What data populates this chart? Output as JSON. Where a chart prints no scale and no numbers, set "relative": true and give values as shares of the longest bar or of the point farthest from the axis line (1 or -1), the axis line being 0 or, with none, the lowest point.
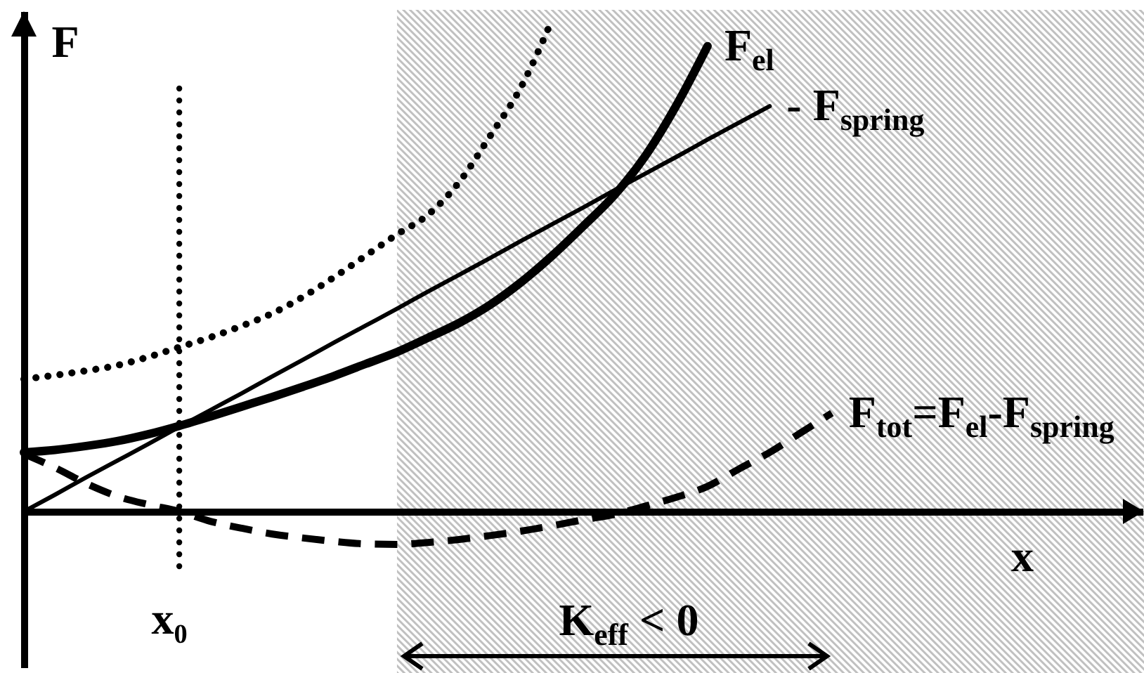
{
  "chart_data": {
    "type": "line",
    "relative": true,
    "xlabel": "x",
    "ylabel": "F",
    "categories": [
      null,
      null,
      null,
      null,
      null,
      null,
      null,
      null,
      null,
      null,
      null,
      null,
      null,
      null,
      null,
      null,
      null,
      null,
      null,
      null,
      null,
      null,
      null,
      null,
      null,
      null,
      null,
      null,
      null,
      null,
      null,
      null,
      null,
      null,
      null,
      null,
      null
    ],
    "series": [
      {
        "name": "F$_{el}$",
        "color": "#000000",
        "line_style": "solid",
        "values": [
          0.12,
          0.125,
          0.133,
          0.143,
          0.157,
          0.174,
          0.193,
          0.213,
          0.233,
          0.254,
          0.276,
          0.3,
          0.324,
          0.353,
          0.383,
          0.42,
          0.466,
          0.52,
          0.58,
          0.643,
          0.723,
          0.826,
          0.946,
          null,
          null,
          null,
          null,
          null,
          null,
          null,
          null,
          null,
          null,
          null,
          null,
          null,
          null
        ]
      },
      {
        "name": "- F$_{spring}$",
        "color": "#000000",
        "line_style": "solid",
        "values": [
          0,
          0.034,
          0.069,
          0.103,
          0.137,
          0.172,
          0.206,
          0.24,
          0.275,
          0.309,
          0.344,
          0.378,
          0.412,
          0.447,
          0.481,
          0.515,
          0.55,
          0.584,
          0.618,
          0.653,
          0.687,
          0.721,
          0.756,
          0.79,
          0.824,
          null,
          null,
          null,
          null,
          null,
          null,
          null,
          null,
          null,
          null,
          null,
          null
        ]
      },
      {
        "name": "F$_{tot}$=F$_{el}$-F$_{spring}$",
        "color": "#000000",
        "line_style": "dashed",
        "values": [
          0.117,
          0.089,
          0.057,
          0.031,
          0.014,
          0,
          -0.02,
          -0.034,
          -0.046,
          -0.054,
          -0.061,
          -0.066,
          -0.067,
          -0.063,
          -0.057,
          -0.049,
          -0.04,
          -0.029,
          -0.017,
          -0.006,
          0.011,
          0.029,
          0.051,
          0.086,
          0.12,
          0.16,
          0.2,
          null,
          null,
          null,
          null,
          null,
          null,
          null,
          null,
          null,
          null
        ]
      },
      {
        "color": "#000000",
        "line_style": "dotted",
        "values": [
          0.269,
          0.277,
          0.286,
          0.297,
          0.314,
          0.334,
          0.354,
          0.377,
          0.403,
          0.437,
          0.477,
          0.52,
          0.563,
          0.603,
          0.669,
          0.763,
          0.863,
          1,
          null,
          null,
          null,
          null,
          null,
          null,
          null,
          null,
          null,
          null,
          null,
          null,
          null,
          null,
          null,
          null,
          null,
          null,
          null
        ]
      }
    ],
    "annotations": [
      "x₀",
      "K$_{eff}$ < 0"
    ]
  }
}
